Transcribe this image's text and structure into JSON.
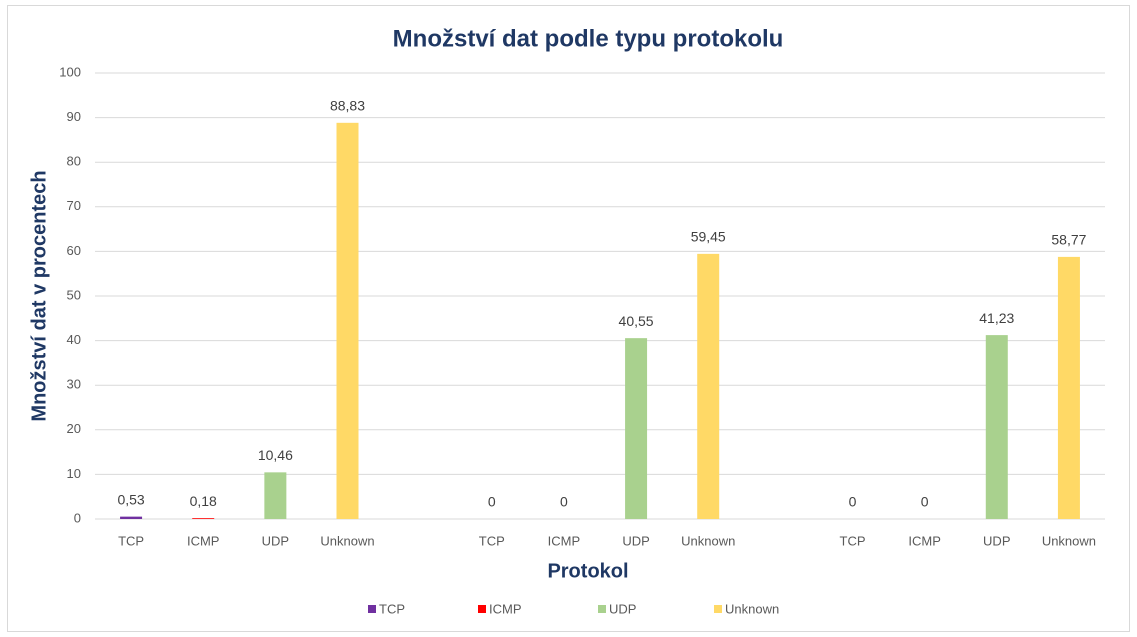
{
  "chart_data": {
    "type": "bar",
    "title": "Množství dat podle typu protokolu",
    "x_label": "Protokol",
    "y_label": "Množství dat v procentech",
    "categories": [
      null,
      null,
      null
    ],
    "series": [
      {
        "name": "TCP",
        "color": "#7030a0",
        "values": [
          0.53,
          0,
          0
        ],
        "value_labels": [
          "0,53",
          "0",
          "0"
        ]
      },
      {
        "name": "ICMP",
        "color": "#ff0000",
        "values": [
          0.18,
          0,
          0
        ],
        "value_labels": [
          "0,18",
          "0",
          "0"
        ]
      },
      {
        "name": "UDP",
        "color": "#a9d18e",
        "values": [
          10.46,
          40.55,
          41.23
        ],
        "value_labels": [
          "10,46",
          "40,55",
          "41,23"
        ]
      },
      {
        "name": "Unknown",
        "color": "#ffd966",
        "values": [
          88.83,
          59.45,
          58.77
        ],
        "value_labels": [
          "88,83",
          "59,45",
          "58,77"
        ]
      }
    ],
    "ylim": [
      0,
      100
    ],
    "yticks": [
      0,
      10,
      20,
      30,
      40,
      50,
      60,
      70,
      80,
      90,
      100
    ],
    "grid": true,
    "legend": "bottom"
  }
}
